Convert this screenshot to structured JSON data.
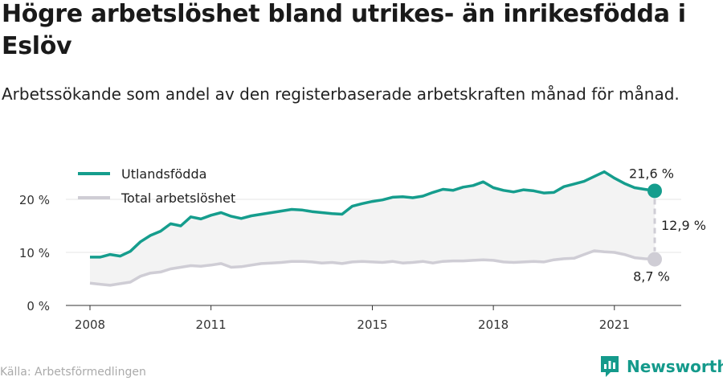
{
  "title": "Högre arbetslöshet bland utrikes- än inrikesfödda i Eslöv",
  "subtitle": "Arbetssökande som andel av den registerbaserade arbetskraften månad för månad.",
  "source": "Källa: Arbetsförmedlingen",
  "brand": "Newsworthy",
  "colors": {
    "foreign": "#159d8d",
    "total": "#cfcdd5",
    "band": "#f3f3f3"
  },
  "chart_data": {
    "type": "line",
    "x_unit": "date",
    "x_range": [
      "2008-01",
      "2022-03"
    ],
    "y_range": [
      0,
      26.5
    ],
    "y_ticks": [
      0,
      10,
      20
    ],
    "y_tick_labels": [
      "0 %",
      "10 %",
      "20 %"
    ],
    "x_ticks": [
      2008,
      2011,
      2015,
      2018,
      2021
    ],
    "x_tick_labels": [
      "2008",
      "2011",
      "2015",
      "2018",
      "2021"
    ],
    "legend_position": "top-left",
    "series": [
      {
        "name": "Utlandsfödda",
        "points": [
          [
            "2008-01",
            9.1
          ],
          [
            "2008-04",
            9.1
          ],
          [
            "2008-07",
            9.6
          ],
          [
            "2008-10",
            9.3
          ],
          [
            "2009-01",
            10.2
          ],
          [
            "2009-04",
            12.0
          ],
          [
            "2009-07",
            13.2
          ],
          [
            "2009-10",
            14.0
          ],
          [
            "2010-01",
            15.4
          ],
          [
            "2010-04",
            15.0
          ],
          [
            "2010-07",
            16.7
          ],
          [
            "2010-10",
            16.3
          ],
          [
            "2011-01",
            17.0
          ],
          [
            "2011-04",
            17.5
          ],
          [
            "2011-07",
            16.8
          ],
          [
            "2011-10",
            16.4
          ],
          [
            "2012-01",
            16.9
          ],
          [
            "2012-04",
            17.2
          ],
          [
            "2012-07",
            17.5
          ],
          [
            "2012-10",
            17.8
          ],
          [
            "2013-01",
            18.1
          ],
          [
            "2013-04",
            18.0
          ],
          [
            "2013-07",
            17.7
          ],
          [
            "2013-10",
            17.5
          ],
          [
            "2014-01",
            17.3
          ],
          [
            "2014-04",
            17.2
          ],
          [
            "2014-07",
            18.7
          ],
          [
            "2014-10",
            19.2
          ],
          [
            "2015-01",
            19.6
          ],
          [
            "2015-04",
            19.9
          ],
          [
            "2015-07",
            20.4
          ],
          [
            "2015-10",
            20.5
          ],
          [
            "2016-01",
            20.3
          ],
          [
            "2016-04",
            20.6
          ],
          [
            "2016-07",
            21.3
          ],
          [
            "2016-10",
            21.9
          ],
          [
            "2017-01",
            21.7
          ],
          [
            "2017-04",
            22.3
          ],
          [
            "2017-07",
            22.6
          ],
          [
            "2017-10",
            23.3
          ],
          [
            "2018-01",
            22.2
          ],
          [
            "2018-04",
            21.7
          ],
          [
            "2018-07",
            21.4
          ],
          [
            "2018-10",
            21.8
          ],
          [
            "2019-01",
            21.6
          ],
          [
            "2019-04",
            21.2
          ],
          [
            "2019-07",
            21.3
          ],
          [
            "2019-10",
            22.4
          ],
          [
            "2020-01",
            22.9
          ],
          [
            "2020-04",
            23.4
          ],
          [
            "2020-07",
            24.3
          ],
          [
            "2020-10",
            25.2
          ],
          [
            "2021-01",
            24.0
          ],
          [
            "2021-04",
            23.0
          ],
          [
            "2021-07",
            22.2
          ],
          [
            "2021-10",
            21.9
          ],
          [
            "2022-01",
            21.6
          ]
        ]
      },
      {
        "name": "Total arbetslöshet",
        "points": [
          [
            "2008-01",
            4.2
          ],
          [
            "2008-04",
            4.0
          ],
          [
            "2008-07",
            3.8
          ],
          [
            "2008-10",
            4.1
          ],
          [
            "2009-01",
            4.4
          ],
          [
            "2009-04",
            5.5
          ],
          [
            "2009-07",
            6.1
          ],
          [
            "2009-10",
            6.3
          ],
          [
            "2010-01",
            6.9
          ],
          [
            "2010-04",
            7.2
          ],
          [
            "2010-07",
            7.5
          ],
          [
            "2010-10",
            7.4
          ],
          [
            "2011-01",
            7.6
          ],
          [
            "2011-04",
            7.9
          ],
          [
            "2011-07",
            7.2
          ],
          [
            "2011-10",
            7.3
          ],
          [
            "2012-01",
            7.6
          ],
          [
            "2012-04",
            7.9
          ],
          [
            "2012-07",
            8.0
          ],
          [
            "2012-10",
            8.1
          ],
          [
            "2013-01",
            8.3
          ],
          [
            "2013-04",
            8.3
          ],
          [
            "2013-07",
            8.2
          ],
          [
            "2013-10",
            8.0
          ],
          [
            "2014-01",
            8.1
          ],
          [
            "2014-04",
            7.9
          ],
          [
            "2014-07",
            8.2
          ],
          [
            "2014-10",
            8.3
          ],
          [
            "2015-01",
            8.2
          ],
          [
            "2015-04",
            8.1
          ],
          [
            "2015-07",
            8.3
          ],
          [
            "2015-10",
            8.0
          ],
          [
            "2016-01",
            8.1
          ],
          [
            "2016-04",
            8.3
          ],
          [
            "2016-07",
            8.0
          ],
          [
            "2016-10",
            8.3
          ],
          [
            "2017-01",
            8.4
          ],
          [
            "2017-04",
            8.4
          ],
          [
            "2017-07",
            8.5
          ],
          [
            "2017-10",
            8.6
          ],
          [
            "2018-01",
            8.5
          ],
          [
            "2018-04",
            8.2
          ],
          [
            "2018-07",
            8.1
          ],
          [
            "2018-10",
            8.2
          ],
          [
            "2019-01",
            8.3
          ],
          [
            "2019-04",
            8.2
          ],
          [
            "2019-07",
            8.6
          ],
          [
            "2019-10",
            8.8
          ],
          [
            "2020-01",
            8.9
          ],
          [
            "2020-04",
            9.6
          ],
          [
            "2020-07",
            10.3
          ],
          [
            "2020-10",
            10.1
          ],
          [
            "2021-01",
            10.0
          ],
          [
            "2021-04",
            9.6
          ],
          [
            "2021-07",
            9.0
          ],
          [
            "2021-10",
            8.8
          ],
          [
            "2022-01",
            8.7
          ]
        ]
      }
    ],
    "annotations": {
      "last_foreign": "21,6 %",
      "last_total": "8,7 %",
      "difference": "12,9 %"
    }
  }
}
